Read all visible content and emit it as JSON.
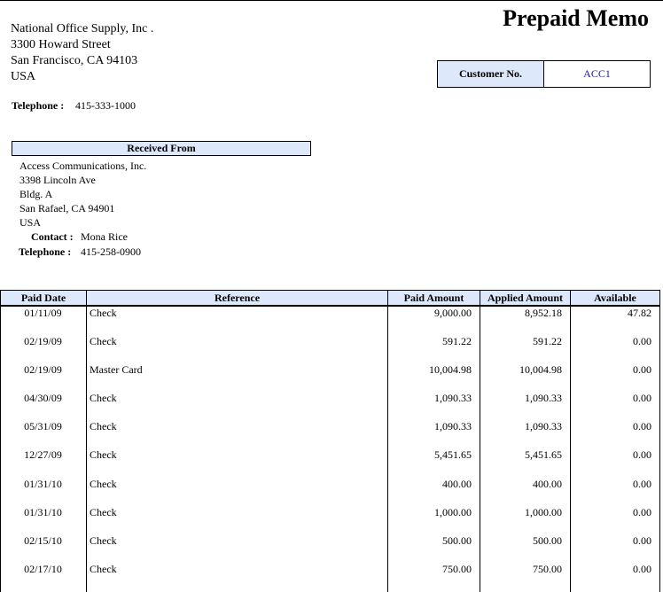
{
  "header": {
    "title": "Prepaid Memo",
    "company": [
      "National Office Supply, Inc .",
      "3300  Howard Street",
      "San Francisco, CA 94103",
      "USA"
    ],
    "telephone_label": "Telephone :",
    "telephone": "415-333-1000",
    "customer_no_label": "Customer No.",
    "customer_no": "ACC1"
  },
  "received_from": {
    "title": "Received From",
    "address": [
      "Access Communications, Inc.",
      "3398  Lincoln Ave",
      "Bldg. A",
      "San Rafael, CA  94901",
      "USA"
    ],
    "contact_label": "Contact :",
    "contact": "Mona Rice",
    "telephone_label": "Telephone :",
    "telephone": "415-258-0900"
  },
  "table": {
    "columns": [
      "Paid Date",
      "Reference",
      "Paid Amount",
      "Applied Amount",
      "Available"
    ],
    "rows": [
      [
        "01/11/09",
        "Check",
        "9,000.00",
        "8,952.18",
        "47.82"
      ],
      [
        "02/19/09",
        "Check",
        "591.22",
        "591.22",
        "0.00"
      ],
      [
        "02/19/09",
        "Master Card",
        "10,004.98",
        "10,004.98",
        "0.00"
      ],
      [
        "04/30/09",
        "Check",
        "1,090.33",
        "1,090.33",
        "0.00"
      ],
      [
        "05/31/09",
        "Check",
        "1,090.33",
        "1,090.33",
        "0.00"
      ],
      [
        "12/27/09",
        "Check",
        "5,451.65",
        "5,451.65",
        "0.00"
      ],
      [
        "01/31/10",
        "Check",
        "400.00",
        "400.00",
        "0.00"
      ],
      [
        "01/31/10",
        "Check",
        "1,000.00",
        "1,000.00",
        "0.00"
      ],
      [
        "02/15/10",
        "Check",
        "500.00",
        "500.00",
        "0.00"
      ],
      [
        "02/17/10",
        "Check",
        "750.00",
        "750.00",
        "0.00"
      ]
    ]
  }
}
